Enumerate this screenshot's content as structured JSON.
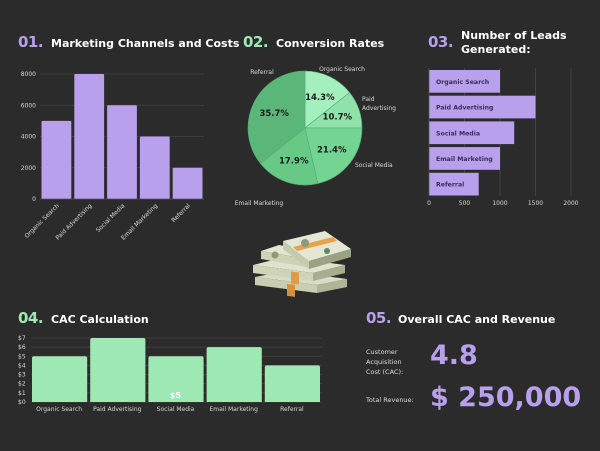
{
  "colors": {
    "background": "#2b2b2b",
    "purple": "#b9a0ec",
    "green": "#9ee8b4",
    "pie": [
      "#a3efbd",
      "#8ee2aa",
      "#74d593",
      "#68c986",
      "#5bb779"
    ]
  },
  "sections": {
    "s1": {
      "number": "01.",
      "title": "Marketing Channels and Costs"
    },
    "s2": {
      "number": "02.",
      "title": "Conversion Rates"
    },
    "s3": {
      "number": "03.",
      "title_line1": "Number of Leads",
      "title_line2": "Generated:"
    },
    "s4": {
      "number": "04.",
      "title": "CAC Calculation"
    },
    "s5": {
      "number": "05.",
      "title": "Overall CAC and Revenue"
    }
  },
  "image": {
    "icon": "money-stack-icon"
  },
  "chart_data": [
    {
      "type": "bar",
      "title": "Marketing Channels and Costs",
      "categories": [
        "Organic Search",
        "Paid Advertising",
        "Social Media",
        "Email Marketing",
        "Referral"
      ],
      "values": [
        5000,
        8000,
        6000,
        4000,
        2000
      ],
      "ylim": [
        0,
        8000
      ],
      "yticks": [
        "0",
        "2000",
        "4000",
        "6000",
        "8000"
      ],
      "yticks_values": [
        0,
        2000,
        4000,
        6000,
        8000
      ],
      "grid": true
    },
    {
      "type": "pie",
      "title": "Conversion Rates",
      "categories": [
        "Organic Search",
        "Paid Advertising",
        "Social Media",
        "Email Marketing",
        "Referral"
      ],
      "legend_labels": [
        "Organic Search",
        "Paid|Advertising",
        "Social Media",
        "Email Marketing",
        "Referral"
      ],
      "values": [
        14.3,
        10.7,
        21.4,
        17.9,
        35.7
      ],
      "value_labels": [
        "14.3%",
        "10.7%",
        "21.4%",
        "17.9%",
        "35.7%"
      ]
    },
    {
      "type": "bar",
      "orientation": "horizontal",
      "title": "Number of Leads Generated:",
      "categories": [
        "Organic Search",
        "Paid Advertising",
        "Social Media",
        "Email Marketing",
        "Referral"
      ],
      "values": [
        1000,
        1500,
        1200,
        1000,
        700
      ],
      "xlim": [
        0,
        2000
      ],
      "xticks": [
        "0",
        "500",
        "1000",
        "1500",
        "2000"
      ],
      "xticks_values": [
        0,
        500,
        1000,
        1500,
        2000
      ],
      "grid": true
    },
    {
      "type": "bar",
      "title": "CAC Calculation",
      "categories": [
        "Organic Search",
        "Paid Advertising",
        "Social Media",
        "Email Marketing",
        "Referral"
      ],
      "values": [
        5,
        7,
        5,
        6,
        4
      ],
      "ylim": [
        0,
        7
      ],
      "yticks": [
        "$0",
        "$1",
        "$2",
        "$3",
        "$4",
        "$5",
        "$6",
        "$7"
      ],
      "yticks_values": [
        0,
        1,
        2,
        3,
        4,
        5,
        6,
        7
      ],
      "annotation": {
        "category": "Social Media",
        "text": "$5"
      },
      "grid": true
    }
  ],
  "summary": {
    "cac_label_lines": [
      "Customer",
      "Acquisition",
      "Cost (CAC):"
    ],
    "cac_value": "4.8",
    "revenue_label": "Total Revenue:",
    "revenue_value": "$ 250,000"
  }
}
